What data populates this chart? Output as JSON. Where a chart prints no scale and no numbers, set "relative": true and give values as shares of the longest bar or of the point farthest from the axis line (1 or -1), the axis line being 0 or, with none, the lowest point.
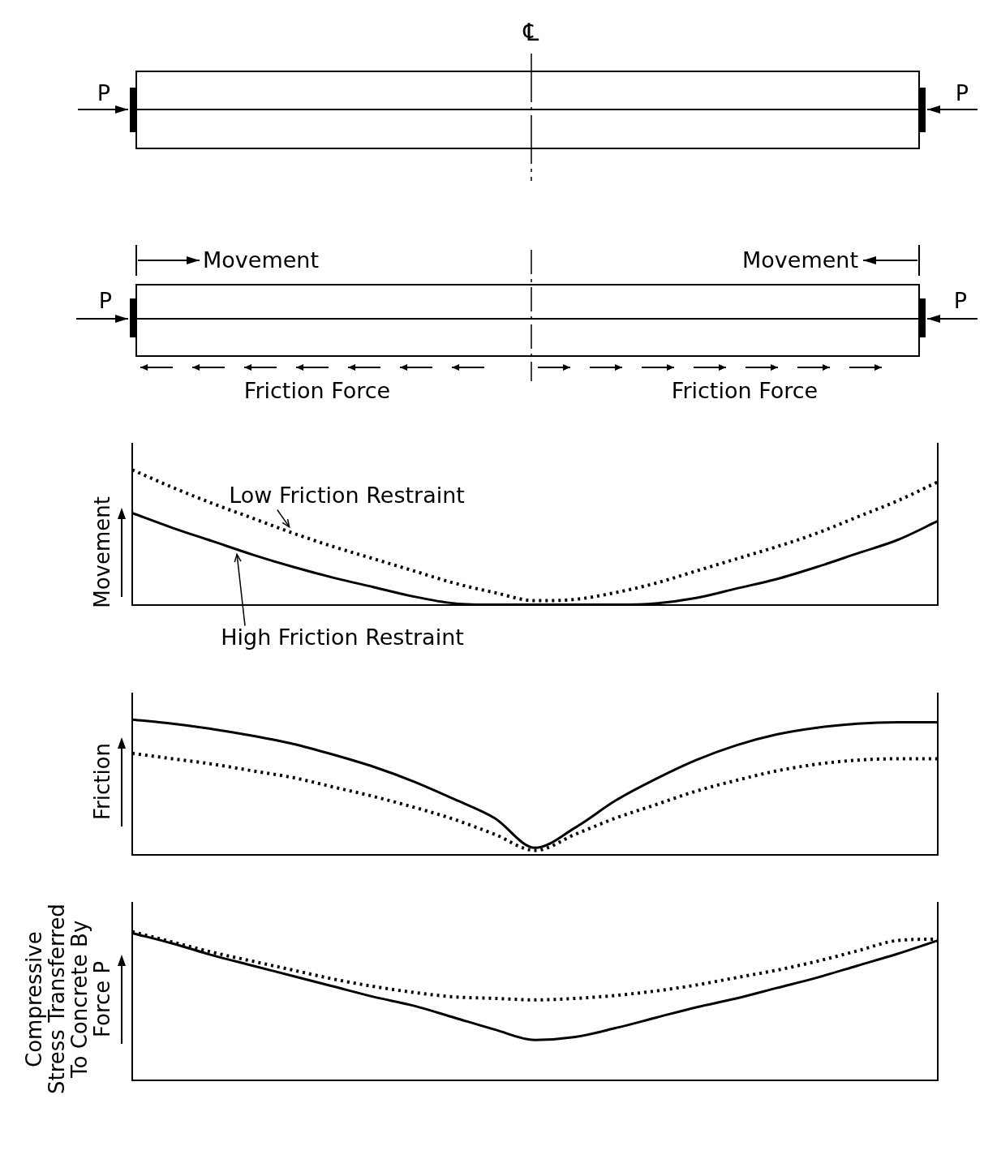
{
  "chart_data": [
    {
      "type": "other",
      "annotations": [
        "℄",
        "P",
        "P",
        "P",
        "P",
        "Movement",
        "Movement",
        "Friction Force",
        "Friction Force"
      ]
    },
    {
      "type": "line",
      "ylabel": "Movement",
      "relative": true,
      "legend": false,
      "grid": false,
      "marker": "none",
      "categories": [
        null,
        null,
        null,
        null,
        null,
        null,
        null,
        null,
        null,
        null,
        null,
        null,
        null,
        null,
        null,
        null,
        null,
        null,
        null,
        null,
        null
      ],
      "series": [
        {
          "name": "Low Friction Restraint",
          "color": "#000000",
          "line_style": "dotted",
          "values": [
            1,
            0.87,
            0.75,
            0.64,
            0.53,
            0.43,
            0.34,
            0.25,
            0.16,
            0.09,
            0.03,
            0.04,
            0.09,
            0.16,
            0.25,
            0.34,
            0.43,
            0.53,
            0.65,
            0.77,
            0.91
          ]
        },
        {
          "name": "High Friction Restraint",
          "color": "#000000",
          "line_style": "solid",
          "values": [
            0.68,
            0.57,
            0.47,
            0.37,
            0.28,
            0.2,
            0.13,
            0.06,
            0.01,
            0,
            0,
            0,
            0,
            0.01,
            0.05,
            0.12,
            0.19,
            0.28,
            0.38,
            0.48,
            0.62
          ]
        }
      ]
    },
    {
      "type": "line",
      "ylabel": "Friction",
      "relative": true,
      "legend": false,
      "grid": false,
      "marker": "none",
      "categories": [
        null,
        null,
        null,
        null,
        null,
        null,
        null,
        null,
        null,
        null,
        null,
        null,
        null,
        null,
        null,
        null,
        null,
        null,
        null,
        null,
        null
      ],
      "series": [
        {
          "color": "#000000",
          "line_style": "solid",
          "values": [
            1,
            0.97,
            0.93,
            0.88,
            0.82,
            0.74,
            0.65,
            0.54,
            0.41,
            0.27,
            0.05,
            0.2,
            0.4,
            0.56,
            0.7,
            0.81,
            0.89,
            0.94,
            0.97,
            0.98,
            0.98
          ]
        },
        {
          "color": "#000000",
          "line_style": "dotted",
          "values": [
            0.75,
            0.71,
            0.67,
            0.62,
            0.57,
            0.5,
            0.43,
            0.35,
            0.26,
            0.15,
            0.03,
            0.15,
            0.27,
            0.37,
            0.47,
            0.55,
            0.62,
            0.67,
            0.7,
            0.71,
            0.71
          ]
        }
      ]
    },
    {
      "type": "line",
      "ylabel": "Compressive Stress Transferred To Concrete By Force P",
      "relative": true,
      "legend": false,
      "grid": false,
      "marker": "none",
      "categories": [
        null,
        null,
        null,
        null,
        null,
        null,
        null,
        null,
        null,
        null,
        null,
        null,
        null,
        null,
        null,
        null,
        null,
        null,
        null,
        null,
        null
      ],
      "series": [
        {
          "color": "#000000",
          "line_style": "solid",
          "values": [
            0.99,
            0.92,
            0.84,
            0.77,
            0.7,
            0.63,
            0.56,
            0.5,
            0.42,
            0.34,
            0.27,
            0.29,
            0.35,
            0.42,
            0.49,
            0.55,
            0.62,
            0.69,
            0.77,
            0.85,
            0.94
          ]
        },
        {
          "color": "#000000",
          "line_style": "dotted",
          "values": [
            1,
            0.93,
            0.86,
            0.8,
            0.74,
            0.68,
            0.63,
            0.59,
            0.56,
            0.55,
            0.54,
            0.55,
            0.57,
            0.6,
            0.64,
            0.69,
            0.74,
            0.8,
            0.87,
            0.94,
            0.95
          ]
        }
      ]
    }
  ]
}
